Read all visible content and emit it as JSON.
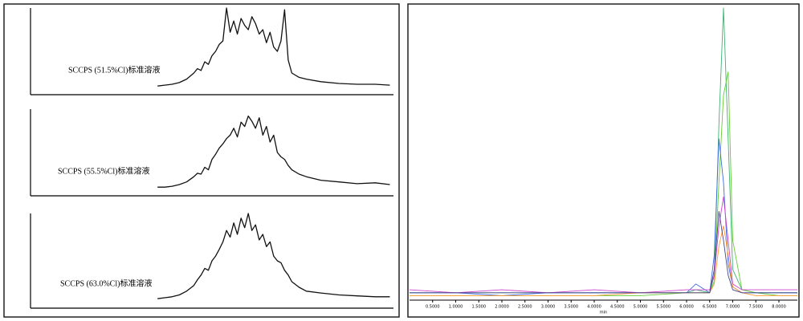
{
  "chart_data": [
    {
      "type": "line",
      "annotation": "SCCPS (51.5%Cl)标准溶液",
      "x": [
        35,
        37,
        39,
        41,
        43,
        45,
        46,
        47,
        48,
        49,
        50,
        51,
        52,
        53,
        54,
        55,
        56,
        57,
        58,
        59,
        60,
        61,
        62,
        63,
        64,
        65,
        66,
        67,
        68,
        69,
        70,
        71,
        72,
        74,
        76,
        80,
        85,
        90,
        95,
        99
      ],
      "series": [
        {
          "color": "#111111",
          "values": [
            10,
            11,
            12,
            14,
            18,
            25,
            30,
            28,
            38,
            35,
            45,
            50,
            58,
            62,
            100,
            72,
            85,
            70,
            88,
            80,
            75,
            90,
            82,
            70,
            75,
            60,
            72,
            55,
            50,
            62,
            98,
            40,
            25,
            20,
            18,
            15,
            13,
            12,
            12,
            11
          ]
        }
      ],
      "xlim": [
        0,
        100
      ],
      "ylim": [
        0,
        100
      ]
    },
    {
      "type": "line",
      "annotation": "SCCPS (55.5%Cl)标准溶液",
      "x": [
        35,
        37,
        39,
        41,
        43,
        45,
        46,
        47,
        48,
        49,
        50,
        51,
        52,
        53,
        54,
        55,
        56,
        57,
        58,
        59,
        60,
        61,
        62,
        63,
        64,
        65,
        66,
        67,
        68,
        69,
        70,
        71,
        72,
        74,
        76,
        80,
        85,
        90,
        95,
        99
      ],
      "series": [
        {
          "color": "#111111",
          "values": [
            10,
            10,
            11,
            13,
            16,
            22,
            26,
            25,
            33,
            30,
            42,
            48,
            55,
            60,
            66,
            70,
            78,
            68,
            85,
            80,
            92,
            86,
            78,
            90,
            70,
            80,
            62,
            70,
            50,
            45,
            42,
            35,
            30,
            25,
            22,
            18,
            16,
            14,
            15,
            13
          ]
        }
      ],
      "xlim": [
        0,
        100
      ],
      "ylim": [
        0,
        100
      ]
    },
    {
      "type": "line",
      "annotation": "SCCPS (63.0%Cl)标准溶液",
      "x": [
        35,
        37,
        39,
        41,
        43,
        45,
        46,
        47,
        48,
        49,
        50,
        51,
        52,
        53,
        54,
        55,
        56,
        57,
        58,
        59,
        60,
        61,
        62,
        63,
        64,
        65,
        66,
        67,
        68,
        69,
        70,
        71,
        72,
        74,
        76,
        80,
        85,
        90,
        95,
        99
      ],
      "series": [
        {
          "color": "#111111",
          "values": [
            10,
            11,
            12,
            14,
            18,
            24,
            30,
            35,
            42,
            40,
            50,
            55,
            62,
            70,
            82,
            75,
            90,
            78,
            95,
            85,
            100,
            82,
            88,
            72,
            78,
            65,
            70,
            55,
            50,
            48,
            40,
            35,
            28,
            22,
            18,
            16,
            14,
            13,
            12,
            12
          ]
        }
      ],
      "xlim": [
        0,
        100
      ],
      "ylim": [
        0,
        100
      ]
    },
    {
      "type": "line",
      "xlabel": "min",
      "x": [
        0,
        1,
        2,
        3,
        4,
        5,
        6,
        6.2,
        6.5,
        6.6,
        6.7,
        6.8,
        6.9,
        7.0,
        7.2,
        7.5,
        8,
        8.4
      ],
      "series": [
        {
          "color": "#3cb371",
          "values": [
            2,
            2,
            2,
            2,
            2,
            2,
            2,
            3,
            2,
            8,
            60,
            100,
            55,
            10,
            3,
            2,
            2,
            2
          ]
        },
        {
          "color": "#66cc33",
          "values": [
            1,
            1,
            1,
            1,
            1,
            1,
            2,
            2,
            2,
            6,
            40,
            70,
            78,
            20,
            3,
            2,
            1,
            1
          ]
        },
        {
          "color": "#4169e1",
          "values": [
            2,
            2,
            1,
            2,
            2,
            2,
            2,
            5,
            2,
            15,
            55,
            40,
            12,
            4,
            2,
            2,
            2,
            2
          ]
        },
        {
          "color": "#cc44cc",
          "values": [
            3,
            2,
            3,
            2,
            3,
            2,
            3,
            3,
            3,
            8,
            25,
            35,
            20,
            5,
            3,
            3,
            3,
            3
          ]
        },
        {
          "color": "#ff9933",
          "values": [
            1,
            1,
            1,
            1,
            1,
            2,
            2,
            2,
            2,
            5,
            18,
            25,
            15,
            4,
            2,
            1,
            1,
            1
          ]
        },
        {
          "color": "#444488",
          "values": [
            2,
            2,
            2,
            2,
            2,
            2,
            2,
            2,
            2,
            10,
            30,
            20,
            8,
            3,
            2,
            2,
            2,
            2
          ]
        }
      ],
      "xlim": [
        0,
        8.4
      ],
      "ylim": [
        0,
        100
      ],
      "xticks": [
        {
          "value": 0.5,
          "label": "0.5000"
        },
        {
          "value": 1,
          "label": "1.0000"
        },
        {
          "value": 1.5,
          "label": "1.5000"
        },
        {
          "value": 2,
          "label": "2.0000"
        },
        {
          "value": 2.5,
          "label": "2.5000"
        },
        {
          "value": 3,
          "label": "3.0000"
        },
        {
          "value": 3.5,
          "label": "3.5000"
        },
        {
          "value": 4,
          "label": "4.0000"
        },
        {
          "value": 4.5,
          "label": "4.5000"
        },
        {
          "value": 5,
          "label": "5.0000"
        },
        {
          "value": 5.5,
          "label": "5.5000"
        },
        {
          "value": 6,
          "label": "6.0000"
        },
        {
          "value": 6.5,
          "label": "6.5000"
        },
        {
          "value": 7,
          "label": "7.0000"
        },
        {
          "value": 7.5,
          "label": "7.5000"
        },
        {
          "value": 8,
          "label": "8.0000"
        }
      ]
    }
  ]
}
